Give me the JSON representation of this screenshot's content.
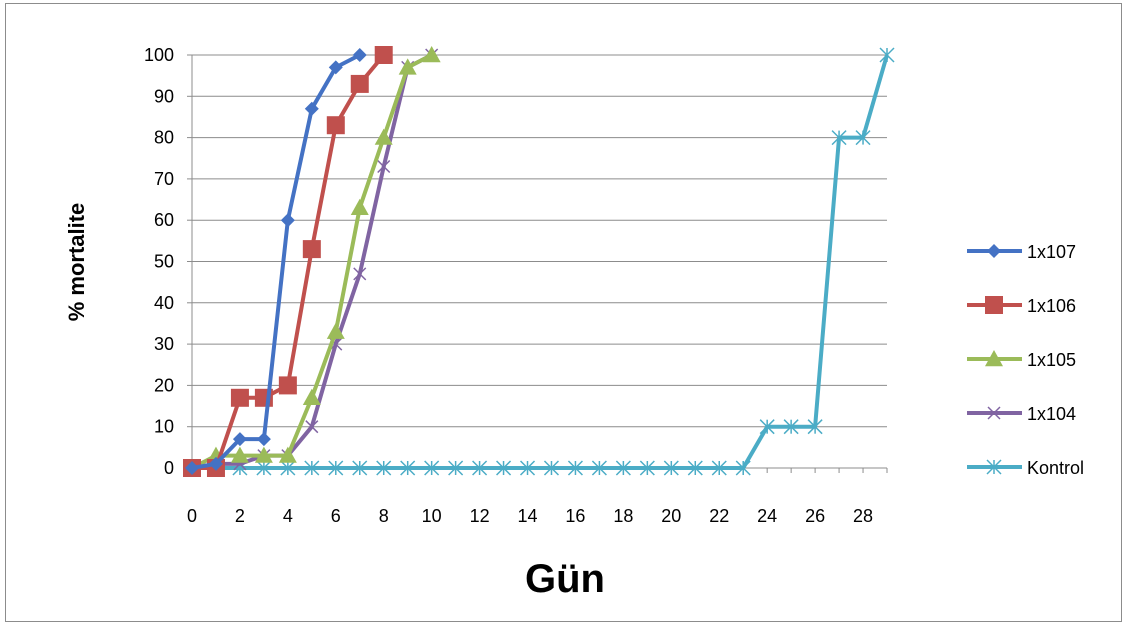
{
  "chart_data": {
    "type": "line",
    "title": "",
    "xlabel": "Gün",
    "ylabel": "% mortalite",
    "xlim": [
      0,
      29
    ],
    "ylim": [
      0,
      100
    ],
    "x_ticks": [
      0,
      2,
      4,
      6,
      8,
      10,
      12,
      14,
      16,
      18,
      20,
      22,
      24,
      26,
      28
    ],
    "y_ticks": [
      0,
      10,
      20,
      30,
      40,
      50,
      60,
      70,
      80,
      90,
      100
    ],
    "grid": true,
    "legend_position": "right",
    "series": [
      {
        "name": "1x107",
        "color": "#4472c4",
        "marker": "diamond",
        "x": [
          0,
          1,
          2,
          3,
          4,
          5,
          6,
          7
        ],
        "y": [
          0,
          1,
          7,
          7,
          60,
          87,
          97,
          100
        ]
      },
      {
        "name": "1x106",
        "color": "#c0504d",
        "marker": "square",
        "x": [
          0,
          1,
          2,
          3,
          4,
          5,
          6,
          7,
          8
        ],
        "y": [
          0,
          0,
          17,
          17,
          20,
          53,
          83,
          93,
          100
        ]
      },
      {
        "name": "1x105",
        "color": "#9bbb59",
        "marker": "triangle",
        "x": [
          0,
          1,
          2,
          3,
          4,
          5,
          6,
          7,
          8,
          9,
          10
        ],
        "y": [
          0,
          3,
          3,
          3,
          3,
          17,
          33,
          63,
          80,
          97,
          100
        ]
      },
      {
        "name": "1x104",
        "color": "#8064a2",
        "marker": "x",
        "x": [
          0,
          1,
          2,
          3,
          4,
          5,
          6,
          7,
          8,
          9,
          10
        ],
        "y": [
          0,
          1,
          1,
          3,
          3,
          10,
          30,
          47,
          73,
          97,
          100
        ]
      },
      {
        "name": "Kontrol",
        "color": "#4bacc6",
        "marker": "star",
        "x": [
          0,
          1,
          2,
          3,
          4,
          5,
          6,
          7,
          8,
          9,
          10,
          11,
          12,
          13,
          14,
          15,
          16,
          17,
          18,
          19,
          20,
          21,
          22,
          23,
          24,
          25,
          26,
          27,
          28,
          29
        ],
        "y": [
          0,
          0,
          0,
          0,
          0,
          0,
          0,
          0,
          0,
          0,
          0,
          0,
          0,
          0,
          0,
          0,
          0,
          0,
          0,
          0,
          0,
          0,
          0,
          0,
          10,
          10,
          10,
          80,
          80,
          100
        ]
      }
    ]
  }
}
